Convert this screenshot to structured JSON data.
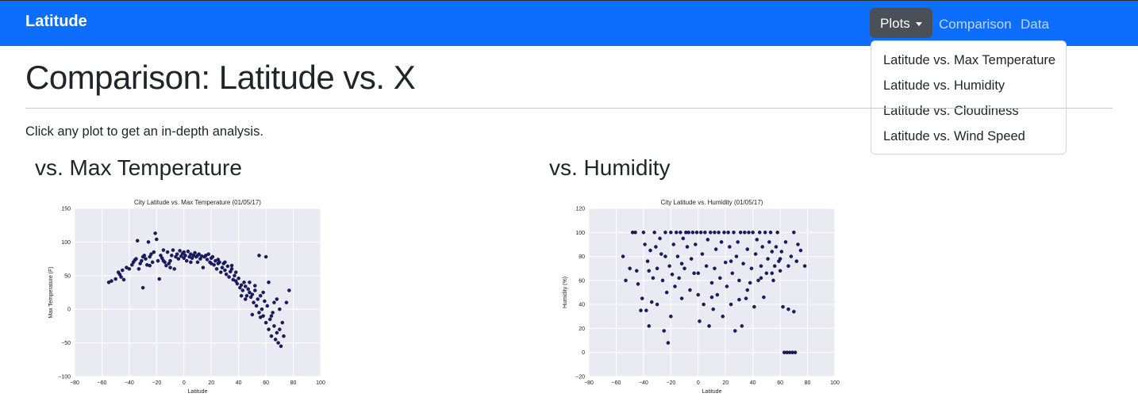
{
  "navbar": {
    "brand": "Latitude",
    "plots_label": "Plots",
    "comparison_label": "Comparison",
    "data_label": "Data",
    "color": "#0d6efd"
  },
  "dropdown": {
    "items": [
      {
        "label": "Latitude vs. Max Temperature"
      },
      {
        "label": "Latitude vs. Humidity"
      },
      {
        "label": "Latitude vs. Cloudiness"
      },
      {
        "label": "Latitude vs. Wind Speed"
      }
    ]
  },
  "main": {
    "title": "Comparison: Latitude vs. X",
    "intro": "Click any plot to get an in-depth analysis.",
    "sections": [
      {
        "heading": "vs. Max Temperature"
      },
      {
        "heading": "vs. Humidity"
      }
    ]
  },
  "chart_data": [
    {
      "type": "scatter",
      "title": "City Latitude vs. Max Temperature (01/05/17)",
      "xlabel": "Latitude",
      "ylabel": "Max Temperature (F)",
      "xlim": [
        -80,
        100
      ],
      "ylim": [
        -100,
        150
      ],
      "xticks": [
        -80,
        -60,
        -40,
        -20,
        0,
        20,
        40,
        60,
        80,
        100
      ],
      "yticks": [
        -100,
        -50,
        0,
        50,
        100,
        150
      ],
      "grid": true,
      "marker_color": "#1a1a6e",
      "points": [
        [
          -55,
          40
        ],
        [
          -53,
          42
        ],
        [
          -50,
          45
        ],
        [
          -48,
          55
        ],
        [
          -47,
          52
        ],
        [
          -46,
          48
        ],
        [
          -45,
          58
        ],
        [
          -44,
          44
        ],
        [
          -42,
          62
        ],
        [
          -40,
          60
        ],
        [
          -38,
          66
        ],
        [
          -37,
          70
        ],
        [
          -36,
          73
        ],
        [
          -35,
          75
        ],
        [
          -34,
          102
        ],
        [
          -33,
          60
        ],
        [
          -32,
          68
        ],
        [
          -31,
          72
        ],
        [
          -30,
          32
        ],
        [
          -29,
          80
        ],
        [
          -28,
          75
        ],
        [
          -27,
          66
        ],
        [
          -26,
          100
        ],
        [
          -25,
          78
        ],
        [
          -24,
          82
        ],
        [
          -23,
          70
        ],
        [
          -22,
          85
        ],
        [
          -21,
          113
        ],
        [
          -20,
          104
        ],
        [
          -19,
          72
        ],
        [
          -18,
          45
        ],
        [
          -17,
          80
        ],
        [
          -16,
          76
        ],
        [
          -15,
          88
        ],
        [
          -14,
          70
        ],
        [
          -13,
          65
        ],
        [
          -12,
          85
        ],
        [
          -11,
          68
        ],
        [
          -10,
          72
        ],
        [
          -9,
          80
        ],
        [
          -8,
          88
        ],
        [
          -7,
          60
        ],
        [
          -6,
          78
        ],
        [
          -5,
          82
        ],
        [
          -4,
          75
        ],
        [
          -3,
          87
        ],
        [
          -2,
          79
        ],
        [
          -1,
          83
        ],
        [
          0,
          85
        ],
        [
          1,
          80
        ],
        [
          2,
          72
        ],
        [
          3,
          86
        ],
        [
          4,
          78
        ],
        [
          5,
          82
        ],
        [
          6,
          76
        ],
        [
          7,
          80
        ],
        [
          8,
          84
        ],
        [
          9,
          78
        ],
        [
          10,
          70
        ],
        [
          11,
          82
        ],
        [
          12,
          75
        ],
        [
          13,
          79
        ],
        [
          14,
          62
        ],
        [
          15,
          78
        ],
        [
          16,
          80
        ],
        [
          17,
          74
        ],
        [
          18,
          82
        ],
        [
          19,
          70
        ],
        [
          20,
          76
        ],
        [
          21,
          78
        ],
        [
          22,
          66
        ],
        [
          23,
          72
        ],
        [
          24,
          60
        ],
        [
          25,
          74
        ],
        [
          26,
          70
        ],
        [
          27,
          55
        ],
        [
          28,
          62
        ],
        [
          29,
          68
        ],
        [
          30,
          58
        ],
        [
          31,
          52
        ],
        [
          32,
          64
        ],
        [
          33,
          48
        ],
        [
          34,
          56
        ],
        [
          35,
          60
        ],
        [
          36,
          44
        ],
        [
          37,
          50
        ],
        [
          38,
          42
        ],
        [
          39,
          38
        ],
        [
          40,
          46
        ],
        [
          41,
          32
        ],
        [
          42,
          36
        ],
        [
          43,
          28
        ],
        [
          44,
          40
        ],
        [
          45,
          34
        ],
        [
          46,
          20
        ],
        [
          47,
          30
        ],
        [
          48,
          25
        ],
        [
          49,
          18
        ],
        [
          50,
          22
        ],
        [
          51,
          10
        ],
        [
          52,
          28
        ],
        [
          53,
          5
        ],
        [
          54,
          15
        ],
        [
          55,
          -5
        ],
        [
          56,
          20
        ],
        [
          57,
          0
        ],
        [
          58,
          -10
        ],
        [
          59,
          12
        ],
        [
          60,
          -20
        ],
        [
          61,
          5
        ],
        [
          62,
          -30
        ],
        [
          63,
          -15
        ],
        [
          64,
          -40
        ],
        [
          65,
          -5
        ],
        [
          66,
          -25
        ],
        [
          67,
          -45
        ],
        [
          68,
          -35
        ],
        [
          69,
          -50
        ],
        [
          70,
          -30
        ],
        [
          71,
          -55
        ],
        [
          72,
          -20
        ],
        [
          73,
          -40
        ],
        [
          75,
          10
        ],
        [
          77,
          28
        ],
        [
          60,
          78
        ],
        [
          55,
          80
        ],
        [
          45,
          15
        ],
        [
          30,
          70
        ],
        [
          -10,
          62
        ],
        [
          5,
          70
        ],
        [
          20,
          68
        ],
        [
          38,
          55
        ],
        [
          48,
          40
        ],
        [
          52,
          35
        ],
        [
          58,
          25
        ],
        [
          62,
          40
        ],
        [
          66,
          10
        ],
        [
          70,
          0
        ],
        [
          68,
          15
        ],
        [
          64,
          -10
        ],
        [
          -30,
          78
        ],
        [
          -25,
          65
        ],
        [
          -15,
          72
        ],
        [
          0,
          76
        ],
        [
          10,
          80
        ],
        [
          25,
          68
        ],
        [
          35,
          65
        ],
        [
          42,
          20
        ],
        [
          50,
          -8
        ],
        [
          56,
          -12
        ]
      ]
    },
    {
      "type": "scatter",
      "title": "City Latitude vs. Humidity (01/05/17)",
      "xlabel": "Latitude",
      "ylabel": "Humidity (%)",
      "xlim": [
        -80,
        100
      ],
      "ylim": [
        -20,
        120
      ],
      "xticks": [
        -80,
        -60,
        -40,
        -20,
        0,
        20,
        40,
        60,
        80,
        100
      ],
      "yticks": [
        -20,
        0,
        20,
        40,
        60,
        80,
        100,
        120
      ],
      "grid": true,
      "marker_color": "#1a1a6e",
      "points": [
        [
          -55,
          80
        ],
        [
          -53,
          60
        ],
        [
          -50,
          70
        ],
        [
          -48,
          100
        ],
        [
          -46,
          100
        ],
        [
          -45,
          68
        ],
        [
          -44,
          57
        ],
        [
          -42,
          35
        ],
        [
          -41,
          45
        ],
        [
          -40,
          100
        ],
        [
          -39,
          90
        ],
        [
          -38,
          35
        ],
        [
          -37,
          76
        ],
        [
          -36,
          22
        ],
        [
          -35,
          85
        ],
        [
          -34,
          42
        ],
        [
          -33,
          62
        ],
        [
          -32,
          100
        ],
        [
          -31,
          88
        ],
        [
          -30,
          70
        ],
        [
          -28,
          95
        ],
        [
          -27,
          82
        ],
        [
          -26,
          60
        ],
        [
          -25,
          18
        ],
        [
          -24,
          100
        ],
        [
          -23,
          50
        ],
        [
          -22,
          8
        ],
        [
          -21,
          72
        ],
        [
          -20,
          100
        ],
        [
          -19,
          65
        ],
        [
          -18,
          90
        ],
        [
          -17,
          55
        ],
        [
          -16,
          100
        ],
        [
          -15,
          80
        ],
        [
          -14,
          62
        ],
        [
          -13,
          100
        ],
        [
          -12,
          45
        ],
        [
          -11,
          95
        ],
        [
          -10,
          70
        ],
        [
          -9,
          100
        ],
        [
          -8,
          88
        ],
        [
          -7,
          100
        ],
        [
          -6,
          52
        ],
        [
          -5,
          78
        ],
        [
          -4,
          100
        ],
        [
          -3,
          66
        ],
        [
          -2,
          90
        ],
        [
          -1,
          100
        ],
        [
          0,
          48
        ],
        [
          1,
          26
        ],
        [
          2,
          100
        ],
        [
          3,
          82
        ],
        [
          4,
          40
        ],
        [
          5,
          100
        ],
        [
          6,
          72
        ],
        [
          7,
          94
        ],
        [
          8,
          22
        ],
        [
          9,
          100
        ],
        [
          10,
          58
        ],
        [
          11,
          36
        ],
        [
          12,
          100
        ],
        [
          13,
          86
        ],
        [
          14,
          48
        ],
        [
          15,
          100
        ],
        [
          16,
          62
        ],
        [
          17,
          92
        ],
        [
          18,
          30
        ],
        [
          19,
          100
        ],
        [
          20,
          75
        ],
        [
          21,
          55
        ],
        [
          22,
          100
        ],
        [
          23,
          88
        ],
        [
          24,
          40
        ],
        [
          25,
          66
        ],
        [
          26,
          100
        ],
        [
          27,
          18
        ],
        [
          28,
          80
        ],
        [
          29,
          92
        ],
        [
          30,
          60
        ],
        [
          31,
          100
        ],
        [
          32,
          22
        ],
        [
          33,
          74
        ],
        [
          34,
          100
        ],
        [
          35,
          45
        ],
        [
          36,
          86
        ],
        [
          37,
          100
        ],
        [
          38,
          58
        ],
        [
          39,
          70
        ],
        [
          40,
          100
        ],
        [
          41,
          38
        ],
        [
          42,
          82
        ],
        [
          43,
          94
        ],
        [
          44,
          60
        ],
        [
          45,
          100
        ],
        [
          46,
          72
        ],
        [
          47,
          88
        ],
        [
          48,
          46
        ],
        [
          49,
          100
        ],
        [
          50,
          66
        ],
        [
          51,
          78
        ],
        [
          52,
          92
        ],
        [
          53,
          100
        ],
        [
          54,
          84
        ],
        [
          55,
          60
        ],
        [
          56,
          72
        ],
        [
          57,
          88
        ],
        [
          58,
          100
        ],
        [
          59,
          76
        ],
        [
          60,
          68
        ],
        [
          61,
          84
        ],
        [
          62,
          38
        ],
        [
          63,
          0
        ],
        [
          64,
          92
        ],
        [
          65,
          0
        ],
        [
          66,
          72
        ],
        [
          67,
          0
        ],
        [
          68,
          80
        ],
        [
          69,
          0
        ],
        [
          70,
          100
        ],
        [
          71,
          0
        ],
        [
          72,
          76
        ],
        [
          73,
          90
        ],
        [
          75,
          85
        ],
        [
          78,
          72
        ],
        [
          66,
          36
        ],
        [
          70,
          34
        ],
        [
          60,
          78
        ],
        [
          54,
          66
        ],
        [
          46,
          62
        ],
        [
          36,
          52
        ],
        [
          24,
          76
        ],
        [
          12,
          70
        ],
        [
          0,
          66
        ],
        [
          -12,
          74
        ],
        [
          -24,
          80
        ],
        [
          -36,
          68
        ],
        [
          -30,
          40
        ],
        [
          -20,
          30
        ],
        [
          10,
          46
        ],
        [
          30,
          44
        ]
      ]
    }
  ]
}
